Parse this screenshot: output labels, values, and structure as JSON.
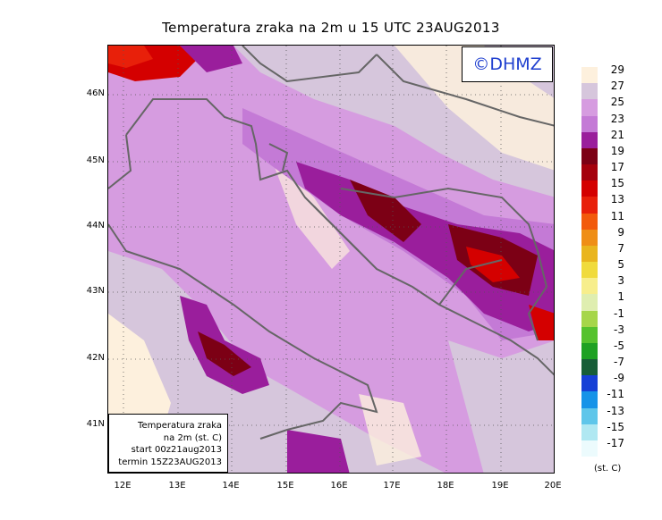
{
  "title": "Temperatura zraka na 2m u 15 UTC 23AUG2013",
  "logo": "©DHMZ",
  "lat_labels": [
    "46N",
    "45N",
    "44N",
    "43N",
    "42N",
    "41N"
  ],
  "lon_labels": [
    "12E",
    "13E",
    "14E",
    "15E",
    "16E",
    "17E",
    "18E",
    "19E",
    "20E"
  ],
  "info_box": {
    "line1": "Temperatura zraka",
    "line2": "na 2m (st. C)",
    "line3": "start 00z21aug2013",
    "line4": "termin 15Z23AUG2013"
  },
  "legend": {
    "labels": [
      "29",
      "27",
      "25",
      "23",
      "21",
      "19",
      "17",
      "15",
      "13",
      "11",
      "9",
      "7",
      "5",
      "3",
      "1",
      "-1",
      "-3",
      "-5",
      "-7",
      "-9",
      "-11",
      "-13",
      "-15",
      "-17"
    ],
    "colors": [
      "#fdf0dd",
      "#d6c6dc",
      "#d69ce0",
      "#c47ad6",
      "#9a1e9c",
      "#7c0015",
      "#a5000d",
      "#d40000",
      "#e8200a",
      "#f25a0c",
      "#ef8e16",
      "#e9b51e",
      "#f0db3c",
      "#f7ee8c",
      "#dfeeb0",
      "#a6d64a",
      "#55c22e",
      "#1ea123",
      "#175e38",
      "#1640d6",
      "#1693e8",
      "#5fc6ea",
      "#b0e8f2",
      "#ecfbfd"
    ],
    "unit": "(st. C)"
  },
  "map": {
    "gridlines": "dotted",
    "lon_range": [
      11.95,
      20.0
    ],
    "lat_range": [
      40.25,
      46.7
    ]
  }
}
